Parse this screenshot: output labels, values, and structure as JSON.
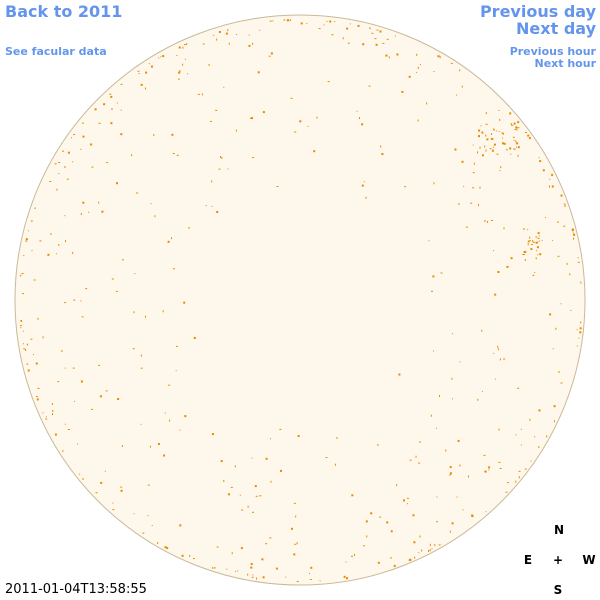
{
  "links": {
    "back": "Back to 2011",
    "facular": "See facular data",
    "previous_day": "Previous day",
    "next_day": "Next day",
    "previous_hour": "Previous hour",
    "next_hour": "Next hour"
  },
  "timestamp": "2011-01-04T13:58:55",
  "compass": {
    "north": "N",
    "east": "E",
    "center": "+",
    "west": "W",
    "south": "S"
  }
}
